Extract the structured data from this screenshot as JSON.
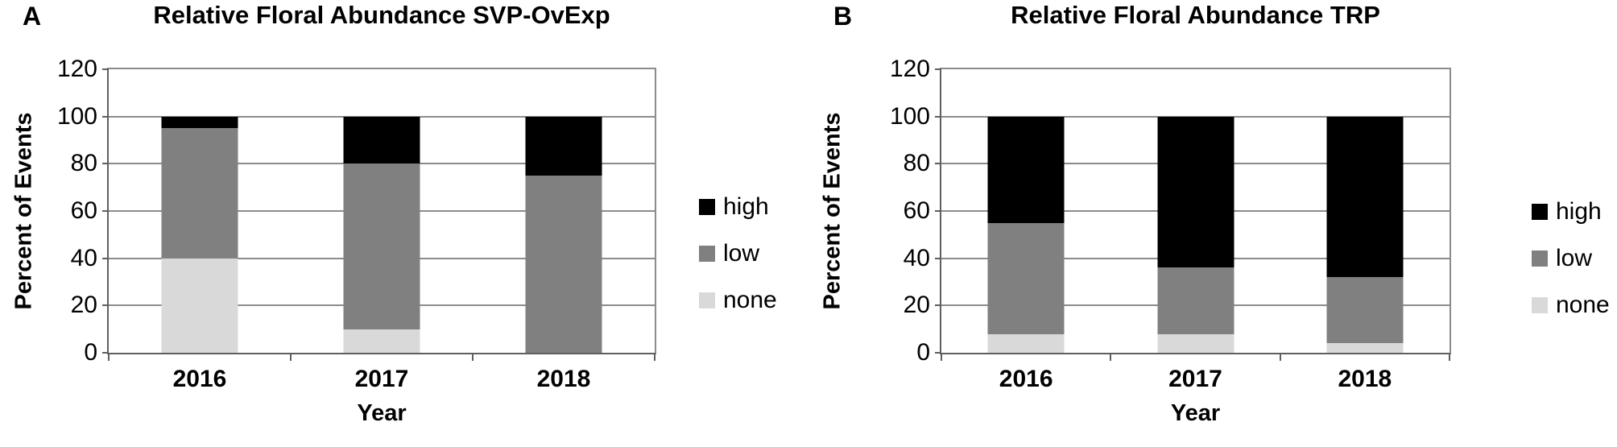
{
  "figure": {
    "background": "#ffffff",
    "text_color": "#000000",
    "gridline_color": "#8c8c8c",
    "axis_color": "#5f5f5f"
  },
  "chart_data": [
    {
      "type": "bar",
      "stacked": true,
      "panel_label": "A",
      "title": "Relative Floral Abundance SVP-OvExp",
      "xlabel": "Year",
      "ylabel": "Percent of Events",
      "ylim": [
        0,
        120
      ],
      "yticks": [
        0,
        20,
        40,
        60,
        80,
        100,
        120
      ],
      "grid": true,
      "legend_position": "right",
      "legend": [
        "high",
        "low",
        "none"
      ],
      "categories": [
        "2016",
        "2017",
        "2018"
      ],
      "series": [
        {
          "name": "none",
          "color": "#d9d9d9",
          "values": [
            40,
            10,
            0
          ]
        },
        {
          "name": "low",
          "color": "#808080",
          "values": [
            55,
            70,
            75
          ]
        },
        {
          "name": "high",
          "color": "#000000",
          "values": [
            5,
            20,
            25
          ]
        }
      ]
    },
    {
      "type": "bar",
      "stacked": true,
      "panel_label": "B",
      "title": "Relative Floral Abundance TRP",
      "xlabel": "Year",
      "ylabel": "Percent of Events",
      "ylim": [
        0,
        120
      ],
      "yticks": [
        0,
        20,
        40,
        60,
        80,
        100,
        120
      ],
      "grid": true,
      "legend_position": "right",
      "legend": [
        "high",
        "low",
        "none"
      ],
      "categories": [
        "2016",
        "2017",
        "2018"
      ],
      "series": [
        {
          "name": "none",
          "color": "#d9d9d9",
          "values": [
            8,
            8,
            4
          ]
        },
        {
          "name": "low",
          "color": "#808080",
          "values": [
            47,
            28,
            28
          ]
        },
        {
          "name": "high",
          "color": "#000000",
          "values": [
            45,
            64,
            68
          ]
        }
      ]
    }
  ]
}
